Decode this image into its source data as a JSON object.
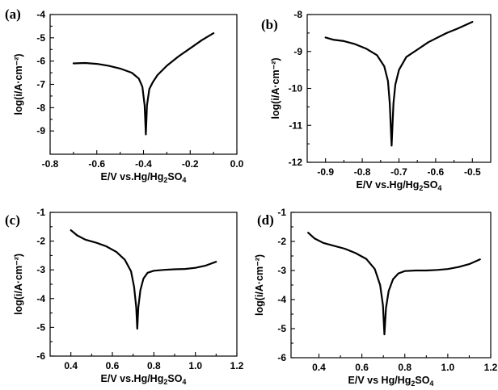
{
  "chart_data": [
    {
      "type": "line",
      "panel_label": "(a)",
      "xlabel_main": "E/V vs.Hg/Hg",
      "xlabel_sub1": "2",
      "xlabel_mid": "SO",
      "xlabel_sub2": "4",
      "ylabel": "log(i/A·cm⁻²)",
      "xlim": [
        -0.8,
        0.0
      ],
      "ylim": [
        -10,
        -4
      ],
      "xticks": [
        -0.8,
        -0.6,
        -0.4,
        -0.2,
        0.0
      ],
      "xtick_labels": [
        "-0.8",
        "-0.6",
        "-0.4",
        "-0.2",
        "0.0"
      ],
      "yticks": [
        -9,
        -8,
        -7,
        -6,
        -5,
        -4
      ],
      "ytick_labels": [
        "-9",
        "-8",
        "-7",
        "-6",
        "-5",
        "-4"
      ],
      "series": [
        {
          "x": [
            -0.7,
            -0.65,
            -0.6,
            -0.55,
            -0.5,
            -0.45,
            -0.42,
            -0.405,
            -0.395,
            -0.39,
            -0.385,
            -0.375,
            -0.36,
            -0.34,
            -0.3,
            -0.25,
            -0.2,
            -0.15,
            -0.1
          ],
          "y": [
            -6.1,
            -6.08,
            -6.12,
            -6.2,
            -6.32,
            -6.5,
            -6.75,
            -7.1,
            -7.9,
            -9.15,
            -7.9,
            -7.2,
            -6.9,
            -6.6,
            -6.2,
            -5.8,
            -5.45,
            -5.1,
            -4.8
          ]
        }
      ]
    },
    {
      "type": "line",
      "panel_label": "(b)",
      "xlabel_main": "E/V vs.Hg/Hg",
      "xlabel_sub1": "2",
      "xlabel_mid": "SO",
      "xlabel_sub2": "4",
      "ylabel": "log(i/A·cm⁻²)",
      "xlim": [
        -0.95,
        -0.45
      ],
      "ylim": [
        -12,
        -8
      ],
      "xticks": [
        -0.9,
        -0.8,
        -0.7,
        -0.6,
        -0.5
      ],
      "xtick_labels": [
        "-0.9",
        "-0.8",
        "-0.7",
        "-0.6",
        "-0.5"
      ],
      "yticks": [
        -12,
        -11,
        -10,
        -9,
        -8
      ],
      "ytick_labels": [
        "-12",
        "-11",
        "-10",
        "-9",
        "-8"
      ],
      "series": [
        {
          "x": [
            -0.9,
            -0.88,
            -0.85,
            -0.82,
            -0.79,
            -0.76,
            -0.74,
            -0.73,
            -0.725,
            -0.72,
            -0.715,
            -0.71,
            -0.7,
            -0.68,
            -0.65,
            -0.62,
            -0.6,
            -0.57,
            -0.54,
            -0.5
          ],
          "y": [
            -8.62,
            -8.68,
            -8.72,
            -8.8,
            -8.92,
            -9.1,
            -9.4,
            -9.8,
            -10.4,
            -11.55,
            -10.4,
            -9.9,
            -9.5,
            -9.15,
            -8.95,
            -8.75,
            -8.65,
            -8.5,
            -8.38,
            -8.2
          ]
        }
      ]
    },
    {
      "type": "line",
      "panel_label": "(c)",
      "xlabel_main": "E/V vs.Hg/Hg",
      "xlabel_sub1": "2",
      "xlabel_mid": "SO",
      "xlabel_sub2": "4",
      "ylabel": "log(i/A·cm⁻²)",
      "xlim": [
        0.3,
        1.2
      ],
      "ylim": [
        -6,
        -1
      ],
      "xticks": [
        0.4,
        0.6,
        0.8,
        1.0,
        1.2
      ],
      "xtick_labels": [
        "0.4",
        "0.6",
        "0.8",
        "1.0",
        "1.2"
      ],
      "yticks": [
        -6,
        -5,
        -4,
        -3,
        -2,
        -1
      ],
      "ytick_labels": [
        "-6",
        "-5",
        "-4",
        "-3",
        "-2",
        "-1"
      ],
      "series": [
        {
          "x": [
            0.4,
            0.43,
            0.47,
            0.52,
            0.57,
            0.62,
            0.66,
            0.69,
            0.705,
            0.715,
            0.72,
            0.725,
            0.735,
            0.75,
            0.77,
            0.8,
            0.85,
            0.9,
            0.95,
            1.0,
            1.05,
            1.1
          ],
          "y": [
            -1.62,
            -1.8,
            -1.95,
            -2.05,
            -2.18,
            -2.38,
            -2.65,
            -3.05,
            -3.6,
            -4.3,
            -5.05,
            -4.3,
            -3.7,
            -3.3,
            -3.1,
            -3.03,
            -3.0,
            -2.98,
            -2.97,
            -2.93,
            -2.85,
            -2.72
          ]
        }
      ]
    },
    {
      "type": "line",
      "panel_label": "(d)",
      "xlabel_main": "E/V vs Hg/Hg",
      "xlabel_sub1": "2",
      "xlabel_mid": "SO",
      "xlabel_sub2": "4",
      "ylabel": "log(i/A·cm⁻²)",
      "xlim": [
        0.27,
        1.2
      ],
      "ylim": [
        -6,
        -1
      ],
      "xticks": [
        0.4,
        0.6,
        0.8,
        1.0,
        1.2
      ],
      "xtick_labels": [
        "0.4",
        "0.6",
        "0.8",
        "1.0",
        "1.2"
      ],
      "yticks": [
        -6,
        -5,
        -4,
        -3,
        -2,
        -1
      ],
      "ytick_labels": [
        "-6",
        "-5",
        "-4",
        "-3",
        "-2",
        "-1"
      ],
      "series": [
        {
          "x": [
            0.35,
            0.38,
            0.42,
            0.47,
            0.52,
            0.57,
            0.62,
            0.66,
            0.685,
            0.698,
            0.705,
            0.712,
            0.725,
            0.745,
            0.77,
            0.8,
            0.85,
            0.9,
            0.95,
            1.0,
            1.05,
            1.1,
            1.15
          ],
          "y": [
            -1.7,
            -1.9,
            -2.05,
            -2.15,
            -2.25,
            -2.4,
            -2.6,
            -2.95,
            -3.5,
            -4.2,
            -5.2,
            -4.3,
            -3.7,
            -3.3,
            -3.1,
            -3.02,
            -3.0,
            -3.0,
            -2.98,
            -2.95,
            -2.88,
            -2.78,
            -2.62
          ]
        }
      ]
    }
  ]
}
